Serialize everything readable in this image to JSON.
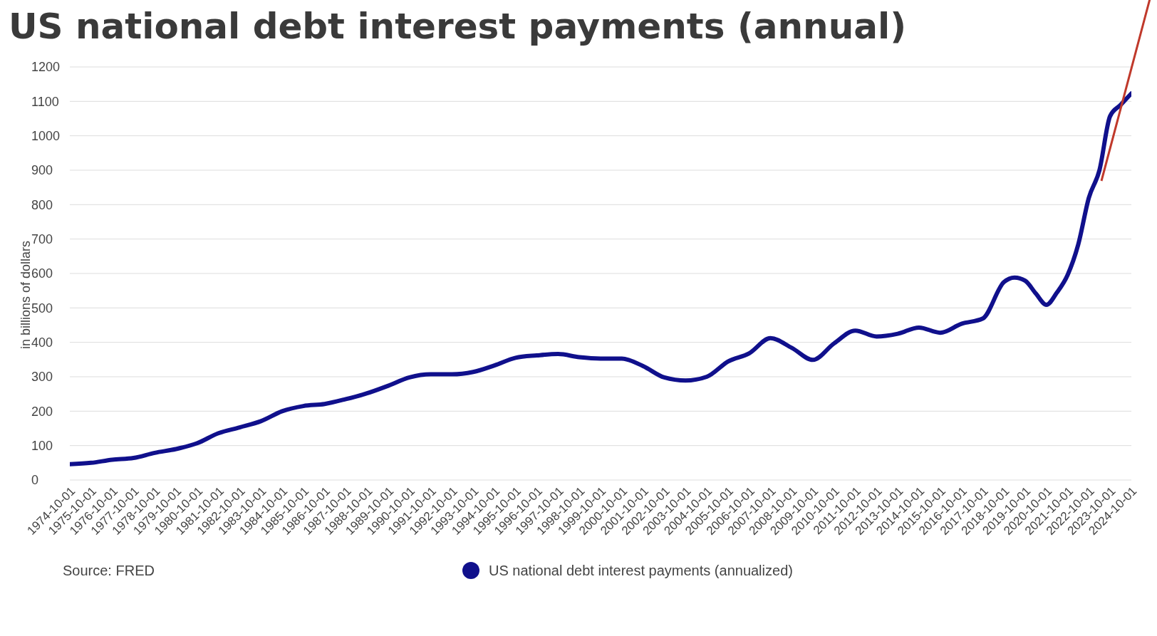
{
  "chart_data": {
    "type": "line",
    "title": "US national debt interest payments (annual)",
    "ylabel": "in billions of dollars",
    "x": [
      "1974-10-01",
      "1975-10-01",
      "1976-10-01",
      "1977-10-01",
      "1978-10-01",
      "1979-10-01",
      "1980-10-01",
      "1981-10-01",
      "1982-10-01",
      "1983-10-01",
      "1984-10-01",
      "1985-10-01",
      "1986-10-01",
      "1987-10-01",
      "1988-10-01",
      "1989-10-01",
      "1990-10-01",
      "1991-10-01",
      "1992-10-01",
      "1993-10-01",
      "1994-10-01",
      "1995-10-01",
      "1996-10-01",
      "1997-10-01",
      "1998-10-01",
      "1999-10-01",
      "2000-10-01",
      "2001-10-01",
      "2002-10-01",
      "2003-10-01",
      "2004-10-01",
      "2005-10-01",
      "2006-10-01",
      "2007-10-01",
      "2008-10-01",
      "2009-10-01",
      "2010-10-01",
      "2011-10-01",
      "2012-10-01",
      "2013-10-01",
      "2014-10-01",
      "2015-10-01",
      "2016-10-01",
      "2017-10-01",
      "2018-10-01",
      "2019-04-01",
      "2019-10-01",
      "2020-04-01",
      "2020-10-01",
      "2021-04-01",
      "2021-10-01",
      "2022-04-01",
      "2022-10-01",
      "2023-04-01",
      "2023-10-01",
      "2024-04-01",
      "2024-10-01"
    ],
    "series": [
      {
        "name": "US national debt interest payments (annualized)",
        "color": "#10108c",
        "values": [
          46,
          50,
          59,
          64,
          79,
          90,
          107,
          136,
          153,
          171,
          200,
          215,
          221,
          235,
          252,
          274,
          298,
          307,
          307,
          314,
          333,
          355,
          362,
          366,
          357,
          353,
          353,
          331,
          298,
          289,
          300,
          344,
          368,
          412,
          384,
          349,
          397,
          434,
          417,
          425,
          443,
          428,
          454,
          469,
          575,
          588,
          579,
          542,
          509,
          545,
          596,
          684,
          820,
          900,
          1057,
          1090,
          1123
        ]
      }
    ],
    "xlim": [
      "1974-10-01",
      "2024-10-01"
    ],
    "xticks": [
      "1974-10-01",
      "1975-10-01",
      "1976-10-01",
      "1977-10-01",
      "1978-10-01",
      "1979-10-01",
      "1980-10-01",
      "1981-10-01",
      "1982-10-01",
      "1983-10-01",
      "1984-10-01",
      "1985-10-01",
      "1986-10-01",
      "1987-10-01",
      "1988-10-01",
      "1989-10-01",
      "1990-10-01",
      "1991-10-01",
      "1992-10-01",
      "1993-10-01",
      "1994-10-01",
      "1995-10-01",
      "1996-10-01",
      "1997-10-01",
      "1998-10-01",
      "1999-10-01",
      "2000-10-01",
      "2001-10-01",
      "2002-10-01",
      "2003-10-01",
      "2004-10-01",
      "2005-10-01",
      "2006-10-01",
      "2007-10-01",
      "2008-10-01",
      "2009-10-01",
      "2010-10-01",
      "2011-10-01",
      "2012-10-01",
      "2013-10-01",
      "2014-10-01",
      "2015-10-01",
      "2016-10-01",
      "2017-10-01",
      "2018-10-01",
      "2019-10-01",
      "2020-10-01",
      "2021-10-01",
      "2022-10-01",
      "2023-10-01",
      "2024-10-01"
    ],
    "ylim": [
      0,
      1200
    ],
    "yticks": [
      0,
      100,
      200,
      300,
      400,
      500,
      600,
      700,
      800,
      900,
      1000,
      1100,
      1200
    ],
    "grid": "y",
    "legend": "bottom",
    "marker": "none",
    "line_style": "solid",
    "annotations": [
      "Source: FRED"
    ]
  }
}
